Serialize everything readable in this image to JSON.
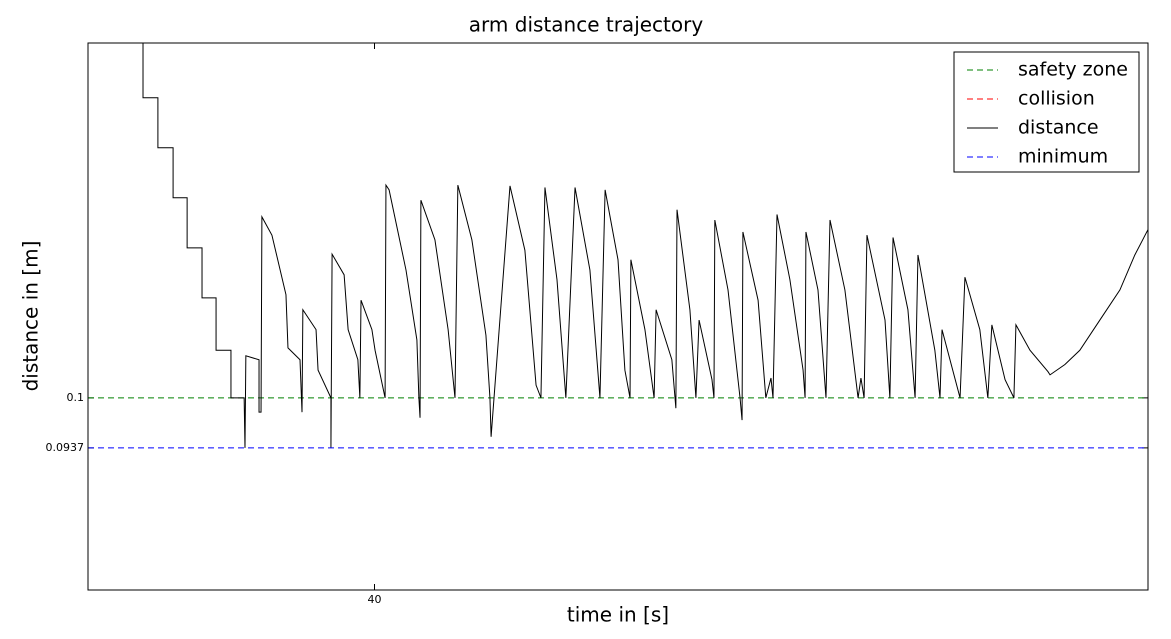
{
  "chart_data": {
    "type": "line",
    "title": "arm distance trajectory",
    "xlabel": "time in [s]",
    "ylabel": "distance in [m]",
    "xlim": [
      30,
      67
    ],
    "xticks": [
      40
    ],
    "ylim": [
      0.0758,
      0.1447
    ],
    "yticks": [
      0.0937,
      0.1
    ],
    "legend": "upper right",
    "series": [
      {
        "name": "safety zone",
        "color": "#008000",
        "style": "dashed",
        "value": 0.1
      },
      {
        "name": "collision",
        "color": "#ff0000",
        "style": "dashed"
      },
      {
        "name": "distance",
        "color": "#000000",
        "style": "solid",
        "x": [
          31.4,
          31.92,
          31.92,
          32.44,
          32.44,
          32.97,
          32.97,
          33.46,
          33.46,
          33.98,
          33.98,
          34.47,
          34.47,
          34.99,
          34.99,
          35.45,
          35.48,
          35.51,
          35.97,
          35.97,
          36.04,
          36.07,
          36.42,
          36.91,
          36.98,
          37.4,
          37.47,
          37.5,
          37.96,
          38.03,
          38.48,
          38.48,
          38.52,
          38.94,
          39.08,
          39.42,
          39.49,
          39.53,
          39.91,
          40.02,
          40.37,
          40.4,
          40.51,
          41.1,
          41.48,
          41.55,
          41.59,
          41.62,
          42.11,
          42.57,
          42.81,
          42.91,
          43.4,
          43.89,
          44.03,
          44.07,
          44.73,
          45.25,
          45.64,
          45.81,
          45.95,
          46.37,
          46.68,
          47.0,
          47.52,
          47.87,
          48.05,
          48.5,
          48.74,
          48.92,
          48.95,
          49.44,
          49.76,
          49.83,
          50.38,
          50.49,
          50.52,
          50.56,
          51.01,
          51.22,
          51.33,
          51.78,
          51.85,
          51.88,
          52.34,
          52.76,
          52.83,
          52.86,
          53.39,
          53.66,
          53.84,
          53.91,
          54.05,
          54.5,
          54.96,
          55.03,
          55.06,
          55.48,
          55.76,
          55.9,
          56.42,
          56.88,
          56.98,
          57.09,
          57.19,
          57.82,
          57.99,
          58.1,
          58.62,
          58.87,
          58.97,
          59.56,
          59.74,
          59.81,
          60.44,
          60.61,
          61.13,
          61.41,
          61.55,
          62.01,
          62.32,
          62.39,
          62.88,
          63.51,
          63.58,
          64.1,
          64.62,
          65.32,
          66.02,
          66.54,
          67.0
        ],
        "values": [
          0.1447,
          0.1447,
          0.1378,
          0.1378,
          0.1315,
          0.1315,
          0.1252,
          0.1252,
          0.1189,
          0.1189,
          0.1126,
          0.1126,
          0.106,
          0.106,
          0.1,
          0.1,
          0.0937,
          0.1053,
          0.1048,
          0.0982,
          0.0982,
          0.1228,
          0.1205,
          0.113,
          0.1063,
          0.1048,
          0.0982,
          0.1111,
          0.1086,
          0.1035,
          0.1,
          0.0937,
          0.1181,
          0.1155,
          0.1086,
          0.1048,
          0.1,
          0.1123,
          0.1086,
          0.106,
          0.1,
          0.1268,
          0.1262,
          0.1161,
          0.1073,
          0.1,
          0.0975,
          0.1249,
          0.1199,
          0.1086,
          0.1,
          0.1268,
          0.1199,
          0.1079,
          0.1,
          0.0951,
          0.1267,
          0.1186,
          0.1016,
          0.1,
          0.1265,
          0.1149,
          0.1,
          0.1265,
          0.1161,
          0.1,
          0.1262,
          0.1174,
          0.1035,
          0.1,
          0.1174,
          0.1086,
          0.1,
          0.1111,
          0.1048,
          0.1,
          0.0987,
          0.1237,
          0.1111,
          0.1,
          0.1098,
          0.1023,
          0.1,
          0.1224,
          0.1136,
          0.1,
          0.0972,
          0.1209,
          0.1123,
          0.1,
          0.1025,
          0.1,
          0.1231,
          0.1149,
          0.1035,
          0.1,
          0.1209,
          0.1136,
          0.1,
          0.1224,
          0.1136,
          0.1,
          0.1025,
          0.1,
          0.1205,
          0.1098,
          0.1,
          0.1202,
          0.1111,
          0.1,
          0.118,
          0.106,
          0.1,
          0.1086,
          0.1,
          0.1152,
          0.1086,
          0.1,
          0.1092,
          0.1023,
          0.1,
          0.1092,
          0.106,
          0.1033,
          0.1029,
          0.1042,
          0.106,
          0.1098,
          0.1136,
          0.118,
          0.1212
        ]
      },
      {
        "name": "minimum",
        "color": "#0000ff",
        "style": "dashed",
        "value": 0.0937
      }
    ]
  }
}
